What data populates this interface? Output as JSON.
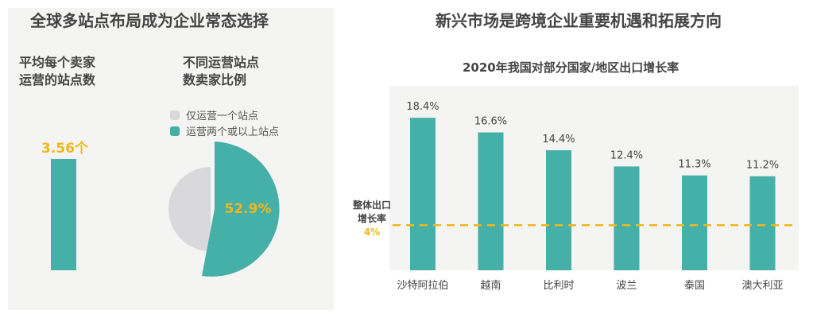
{
  "colors": {
    "teal": "#45b0a8",
    "grey": "#d9d9dc",
    "gold": "#f0b71c",
    "text": "#444444",
    "bg_left": "#f4f4f3",
    "bg_plot": "#f4f4f3"
  },
  "left": {
    "heading": "全球多站点布局成为企业常态选择",
    "avg_label_line1": "平均每个卖家",
    "avg_label_line2": "运营的站点数",
    "avg_value": "3.56个",
    "ratio_label_line1": "不同运营站点",
    "ratio_label_line2": "数卖家比例",
    "legend": [
      {
        "label": "仅运营一个站点",
        "color": "#d9d9dc"
      },
      {
        "label": "运营两个或以上站点",
        "color": "#45b0a8"
      }
    ],
    "pie_value_label": "52.9%"
  },
  "right": {
    "heading": "新兴市场是跨境企业重要机遇和拓展方向",
    "ref_line_label_1": "整体出口",
    "ref_line_label_2": "增长率",
    "ref_line_value": "4%"
  },
  "chart_data": [
    {
      "type": "bar",
      "categories": [
        ""
      ],
      "values": [
        3.56
      ],
      "data_labels": [
        "3.56个"
      ]
    },
    {
      "type": "pie",
      "categories": [
        "仅运营一个站点",
        "运营两个或以上站点"
      ],
      "values": [
        47.1,
        52.9
      ],
      "data_labels": [
        "52.9%"
      ]
    },
    {
      "type": "bar",
      "title": "2020年我国对部分国家/地区出口增长率",
      "categories": [
        "沙特阿拉伯",
        "越南",
        "比利时",
        "波兰",
        "泰国",
        "澳大利亚"
      ],
      "values": [
        18.4,
        16.6,
        14.4,
        12.4,
        11.3,
        11.2
      ],
      "data_labels": [
        "18.4%",
        "16.6%",
        "14.4%",
        "12.4%",
        "11.3%",
        "11.2%"
      ],
      "reference_line": {
        "value": 4,
        "label": "4%"
      },
      "ylim": [
        0,
        20
      ]
    }
  ]
}
